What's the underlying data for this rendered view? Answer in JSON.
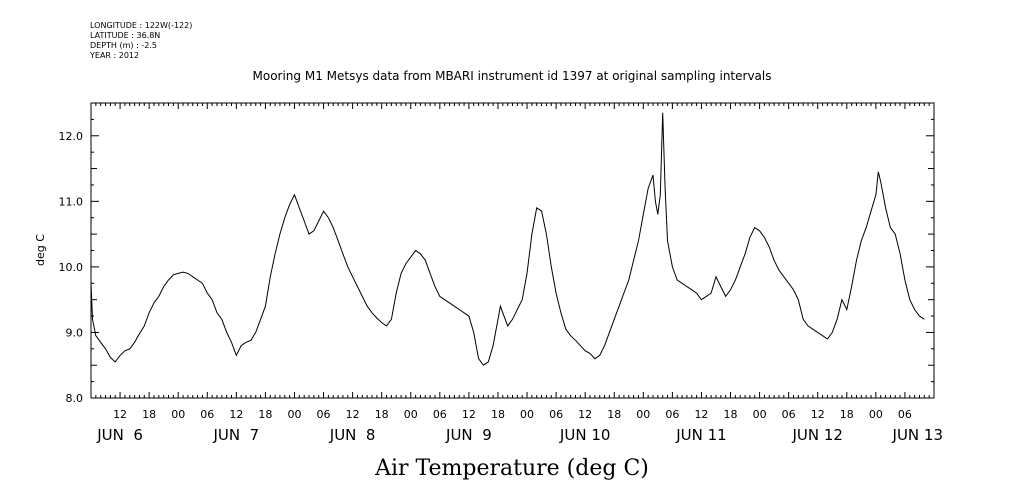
{
  "header": {
    "longitude": "LONGITUDE : 122W(-122)",
    "latitude": "LATITUDE : 36.8N",
    "depth": "DEPTH (m) : -2.5",
    "year": "YEAR : 2012"
  },
  "chart_data": {
    "type": "line",
    "title": "Mooring M1 Metsys data from MBARI instrument id 1397 at original sampling intervals",
    "xlabel": "Air Temperature (deg C)",
    "ylabel": "deg C",
    "ylim": [
      8.0,
      12.5
    ],
    "xlim_hours": [
      6,
      180
    ],
    "y_ticks": [
      "8.0",
      "9.0",
      "10.0",
      "11.0",
      "12.0"
    ],
    "x_hour_ticks": [
      {
        "h": 12,
        "label": "12"
      },
      {
        "h": 18,
        "label": "18"
      },
      {
        "h": 24,
        "label": "00"
      },
      {
        "h": 30,
        "label": "06"
      },
      {
        "h": 36,
        "label": "12"
      },
      {
        "h": 42,
        "label": "18"
      },
      {
        "h": 48,
        "label": "00"
      },
      {
        "h": 54,
        "label": "06"
      },
      {
        "h": 60,
        "label": "12"
      },
      {
        "h": 66,
        "label": "18"
      },
      {
        "h": 72,
        "label": "00"
      },
      {
        "h": 78,
        "label": "06"
      },
      {
        "h": 84,
        "label": "12"
      },
      {
        "h": 90,
        "label": "18"
      },
      {
        "h": 96,
        "label": "00"
      },
      {
        "h": 102,
        "label": "06"
      },
      {
        "h": 108,
        "label": "12"
      },
      {
        "h": 114,
        "label": "18"
      },
      {
        "h": 120,
        "label": "00"
      },
      {
        "h": 126,
        "label": "06"
      },
      {
        "h": 132,
        "label": "12"
      },
      {
        "h": 138,
        "label": "18"
      },
      {
        "h": 144,
        "label": "00"
      },
      {
        "h": 150,
        "label": "06"
      },
      {
        "h": 156,
        "label": "12"
      },
      {
        "h": 162,
        "label": "18"
      },
      {
        "h": 168,
        "label": "00"
      },
      {
        "h": 174,
        "label": "06"
      }
    ],
    "day_labels": [
      {
        "h": 12,
        "label": "JUN  6"
      },
      {
        "h": 36,
        "label": "JUN  7"
      },
      {
        "h": 60,
        "label": "JUN  8"
      },
      {
        "h": 84,
        "label": "JUN  9"
      },
      {
        "h": 108,
        "label": "JUN 10"
      },
      {
        "h": 132,
        "label": "JUN 11"
      },
      {
        "h": 156,
        "label": "JUN 12"
      },
      {
        "h": 180,
        "label": "JUN 13"
      }
    ],
    "series": [
      {
        "values": [
          [
            6.0,
            9.75
          ],
          [
            6.3,
            9.2
          ],
          [
            7.0,
            8.95
          ],
          [
            8.0,
            8.85
          ],
          [
            9.0,
            8.75
          ],
          [
            10.0,
            8.62
          ],
          [
            11.0,
            8.55
          ],
          [
            12.0,
            8.65
          ],
          [
            13.0,
            8.72
          ],
          [
            14.0,
            8.75
          ],
          [
            15.0,
            8.85
          ],
          [
            16.0,
            8.98
          ],
          [
            17.0,
            9.1
          ],
          [
            18.0,
            9.3
          ],
          [
            19.0,
            9.45
          ],
          [
            20.0,
            9.55
          ],
          [
            21.0,
            9.7
          ],
          [
            22.0,
            9.8
          ],
          [
            23.0,
            9.88
          ],
          [
            24.0,
            9.9
          ],
          [
            25.0,
            9.92
          ],
          [
            26.0,
            9.9
          ],
          [
            27.0,
            9.85
          ],
          [
            28.0,
            9.8
          ],
          [
            29.0,
            9.75
          ],
          [
            30.0,
            9.6
          ],
          [
            31.0,
            9.5
          ],
          [
            32.0,
            9.3
          ],
          [
            33.0,
            9.2
          ],
          [
            34.0,
            9.0
          ],
          [
            35.0,
            8.85
          ],
          [
            36.0,
            8.65
          ],
          [
            37.0,
            8.8
          ],
          [
            38.0,
            8.85
          ],
          [
            39.0,
            8.88
          ],
          [
            40.0,
            9.0
          ],
          [
            41.0,
            9.2
          ],
          [
            42.0,
            9.4
          ],
          [
            43.0,
            9.85
          ],
          [
            44.0,
            10.2
          ],
          [
            45.0,
            10.5
          ],
          [
            46.0,
            10.75
          ],
          [
            47.0,
            10.95
          ],
          [
            48.0,
            11.1
          ],
          [
            48.5,
            11.0
          ],
          [
            49.0,
            10.9
          ],
          [
            50.0,
            10.7
          ],
          [
            51.0,
            10.5
          ],
          [
            52.0,
            10.55
          ],
          [
            53.0,
            10.7
          ],
          [
            54.0,
            10.85
          ],
          [
            55.0,
            10.75
          ],
          [
            56.0,
            10.6
          ],
          [
            57.0,
            10.4
          ],
          [
            58.0,
            10.2
          ],
          [
            59.0,
            10.0
          ],
          [
            60.0,
            9.85
          ],
          [
            61.0,
            9.7
          ],
          [
            62.0,
            9.55
          ],
          [
            63.0,
            9.4
          ],
          [
            64.0,
            9.3
          ],
          [
            65.0,
            9.22
          ],
          [
            66.0,
            9.15
          ],
          [
            67.0,
            9.1
          ],
          [
            68.0,
            9.2
          ],
          [
            69.0,
            9.6
          ],
          [
            70.0,
            9.9
          ],
          [
            71.0,
            10.05
          ],
          [
            72.0,
            10.15
          ],
          [
            73.0,
            10.25
          ],
          [
            74.0,
            10.2
          ],
          [
            75.0,
            10.1
          ],
          [
            76.0,
            9.9
          ],
          [
            77.0,
            9.7
          ],
          [
            78.0,
            9.55
          ],
          [
            79.0,
            9.5
          ],
          [
            80.0,
            9.45
          ],
          [
            81.0,
            9.4
          ],
          [
            82.0,
            9.35
          ],
          [
            83.0,
            9.3
          ],
          [
            84.0,
            9.25
          ],
          [
            85.0,
            9.0
          ],
          [
            86.0,
            8.6
          ],
          [
            87.0,
            8.5
          ],
          [
            88.0,
            8.55
          ],
          [
            89.0,
            8.8
          ],
          [
            90.0,
            9.2
          ],
          [
            90.5,
            9.4
          ],
          [
            91.0,
            9.3
          ],
          [
            92.0,
            9.1
          ],
          [
            93.0,
            9.2
          ],
          [
            94.0,
            9.35
          ],
          [
            95.0,
            9.5
          ],
          [
            96.0,
            9.9
          ],
          [
            97.0,
            10.5
          ],
          [
            98.0,
            10.9
          ],
          [
            99.0,
            10.85
          ],
          [
            100.0,
            10.5
          ],
          [
            101.0,
            10.0
          ],
          [
            102.0,
            9.6
          ],
          [
            103.0,
            9.3
          ],
          [
            104.0,
            9.05
          ],
          [
            105.0,
            8.95
          ],
          [
            106.0,
            8.88
          ],
          [
            107.0,
            8.8
          ],
          [
            108.0,
            8.72
          ],
          [
            109.0,
            8.68
          ],
          [
            110.0,
            8.6
          ],
          [
            111.0,
            8.65
          ],
          [
            112.0,
            8.8
          ],
          [
            113.0,
            9.0
          ],
          [
            114.0,
            9.2
          ],
          [
            115.0,
            9.4
          ],
          [
            116.0,
            9.6
          ],
          [
            117.0,
            9.8
          ],
          [
            118.0,
            10.1
          ],
          [
            119.0,
            10.4
          ],
          [
            120.0,
            10.8
          ],
          [
            121.0,
            11.2
          ],
          [
            122.0,
            11.4
          ],
          [
            122.5,
            11.0
          ],
          [
            123.0,
            10.8
          ],
          [
            123.5,
            11.1
          ],
          [
            124.0,
            12.35
          ],
          [
            124.5,
            11.2
          ],
          [
            125.0,
            10.4
          ],
          [
            126.0,
            10.0
          ],
          [
            127.0,
            9.8
          ],
          [
            128.0,
            9.75
          ],
          [
            129.0,
            9.7
          ],
          [
            130.0,
            9.65
          ],
          [
            131.0,
            9.6
          ],
          [
            132.0,
            9.5
          ],
          [
            133.0,
            9.55
          ],
          [
            134.0,
            9.6
          ],
          [
            135.0,
            9.85
          ],
          [
            136.0,
            9.7
          ],
          [
            137.0,
            9.55
          ],
          [
            138.0,
            9.65
          ],
          [
            139.0,
            9.8
          ],
          [
            140.0,
            10.0
          ],
          [
            141.0,
            10.2
          ],
          [
            142.0,
            10.45
          ],
          [
            143.0,
            10.6
          ],
          [
            144.0,
            10.55
          ],
          [
            145.0,
            10.45
          ],
          [
            146.0,
            10.3
          ],
          [
            147.0,
            10.1
          ],
          [
            148.0,
            9.95
          ],
          [
            149.0,
            9.85
          ],
          [
            150.0,
            9.75
          ],
          [
            151.0,
            9.65
          ],
          [
            152.0,
            9.5
          ],
          [
            153.0,
            9.2
          ],
          [
            154.0,
            9.1
          ],
          [
            155.0,
            9.05
          ],
          [
            156.0,
            9.0
          ],
          [
            157.0,
            8.95
          ],
          [
            158.0,
            8.9
          ],
          [
            159.0,
            9.0
          ],
          [
            160.0,
            9.2
          ],
          [
            161.0,
            9.5
          ],
          [
            162.0,
            9.35
          ],
          [
            163.0,
            9.7
          ],
          [
            164.0,
            10.1
          ],
          [
            165.0,
            10.4
          ],
          [
            166.0,
            10.6
          ],
          [
            167.0,
            10.85
          ],
          [
            168.0,
            11.1
          ],
          [
            168.5,
            11.45
          ],
          [
            169.0,
            11.3
          ],
          [
            170.0,
            10.9
          ],
          [
            171.0,
            10.6
          ],
          [
            172.0,
            10.5
          ],
          [
            173.0,
            10.2
          ],
          [
            174.0,
            9.8
          ],
          [
            175.0,
            9.5
          ],
          [
            176.0,
            9.35
          ],
          [
            177.0,
            9.25
          ],
          [
            178.0,
            9.2
          ]
        ]
      }
    ]
  }
}
